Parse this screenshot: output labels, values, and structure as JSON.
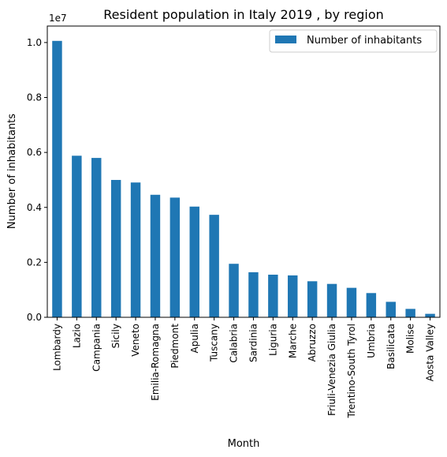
{
  "chart_data": {
    "type": "bar",
    "title": "Resident population in Italy 2019 , by region",
    "xlabel": "Month",
    "ylabel": "Number of inhabitants",
    "y_offset_label": "1e7",
    "ylim": [
      0,
      10600000
    ],
    "yticks": [
      0,
      2000000,
      4000000,
      6000000,
      8000000,
      10000000
    ],
    "ytick_labels": [
      "0.0",
      "0.2",
      "0.4",
      "0.6",
      "0.8",
      "1.0"
    ],
    "grid": false,
    "legend_position": "top-right",
    "bar_color": "#1f77b4",
    "categories": [
      "Lombardy",
      "Lazio",
      "Campania",
      "Sicily",
      "Veneto",
      "Emilia-Romagna",
      "Piedmont",
      "Apulia",
      "Tuscany",
      "Calabria",
      "Sardinia",
      "Liguria",
      "Marche",
      "Abruzzo",
      "Friuli-Venezia Giulia",
      "Trentino-South Tyrol",
      "Umbria",
      "Basilicata",
      "Molise",
      "Aosta Valley"
    ],
    "series": [
      {
        "name": "Number of inhabitants",
        "values": [
          10060000,
          5880000,
          5800000,
          4999000,
          4906000,
          4459000,
          4356000,
          4029000,
          3730000,
          1947000,
          1640000,
          1551000,
          1525000,
          1312000,
          1215000,
          1073000,
          882000,
          563000,
          306000,
          126000
        ]
      }
    ]
  }
}
